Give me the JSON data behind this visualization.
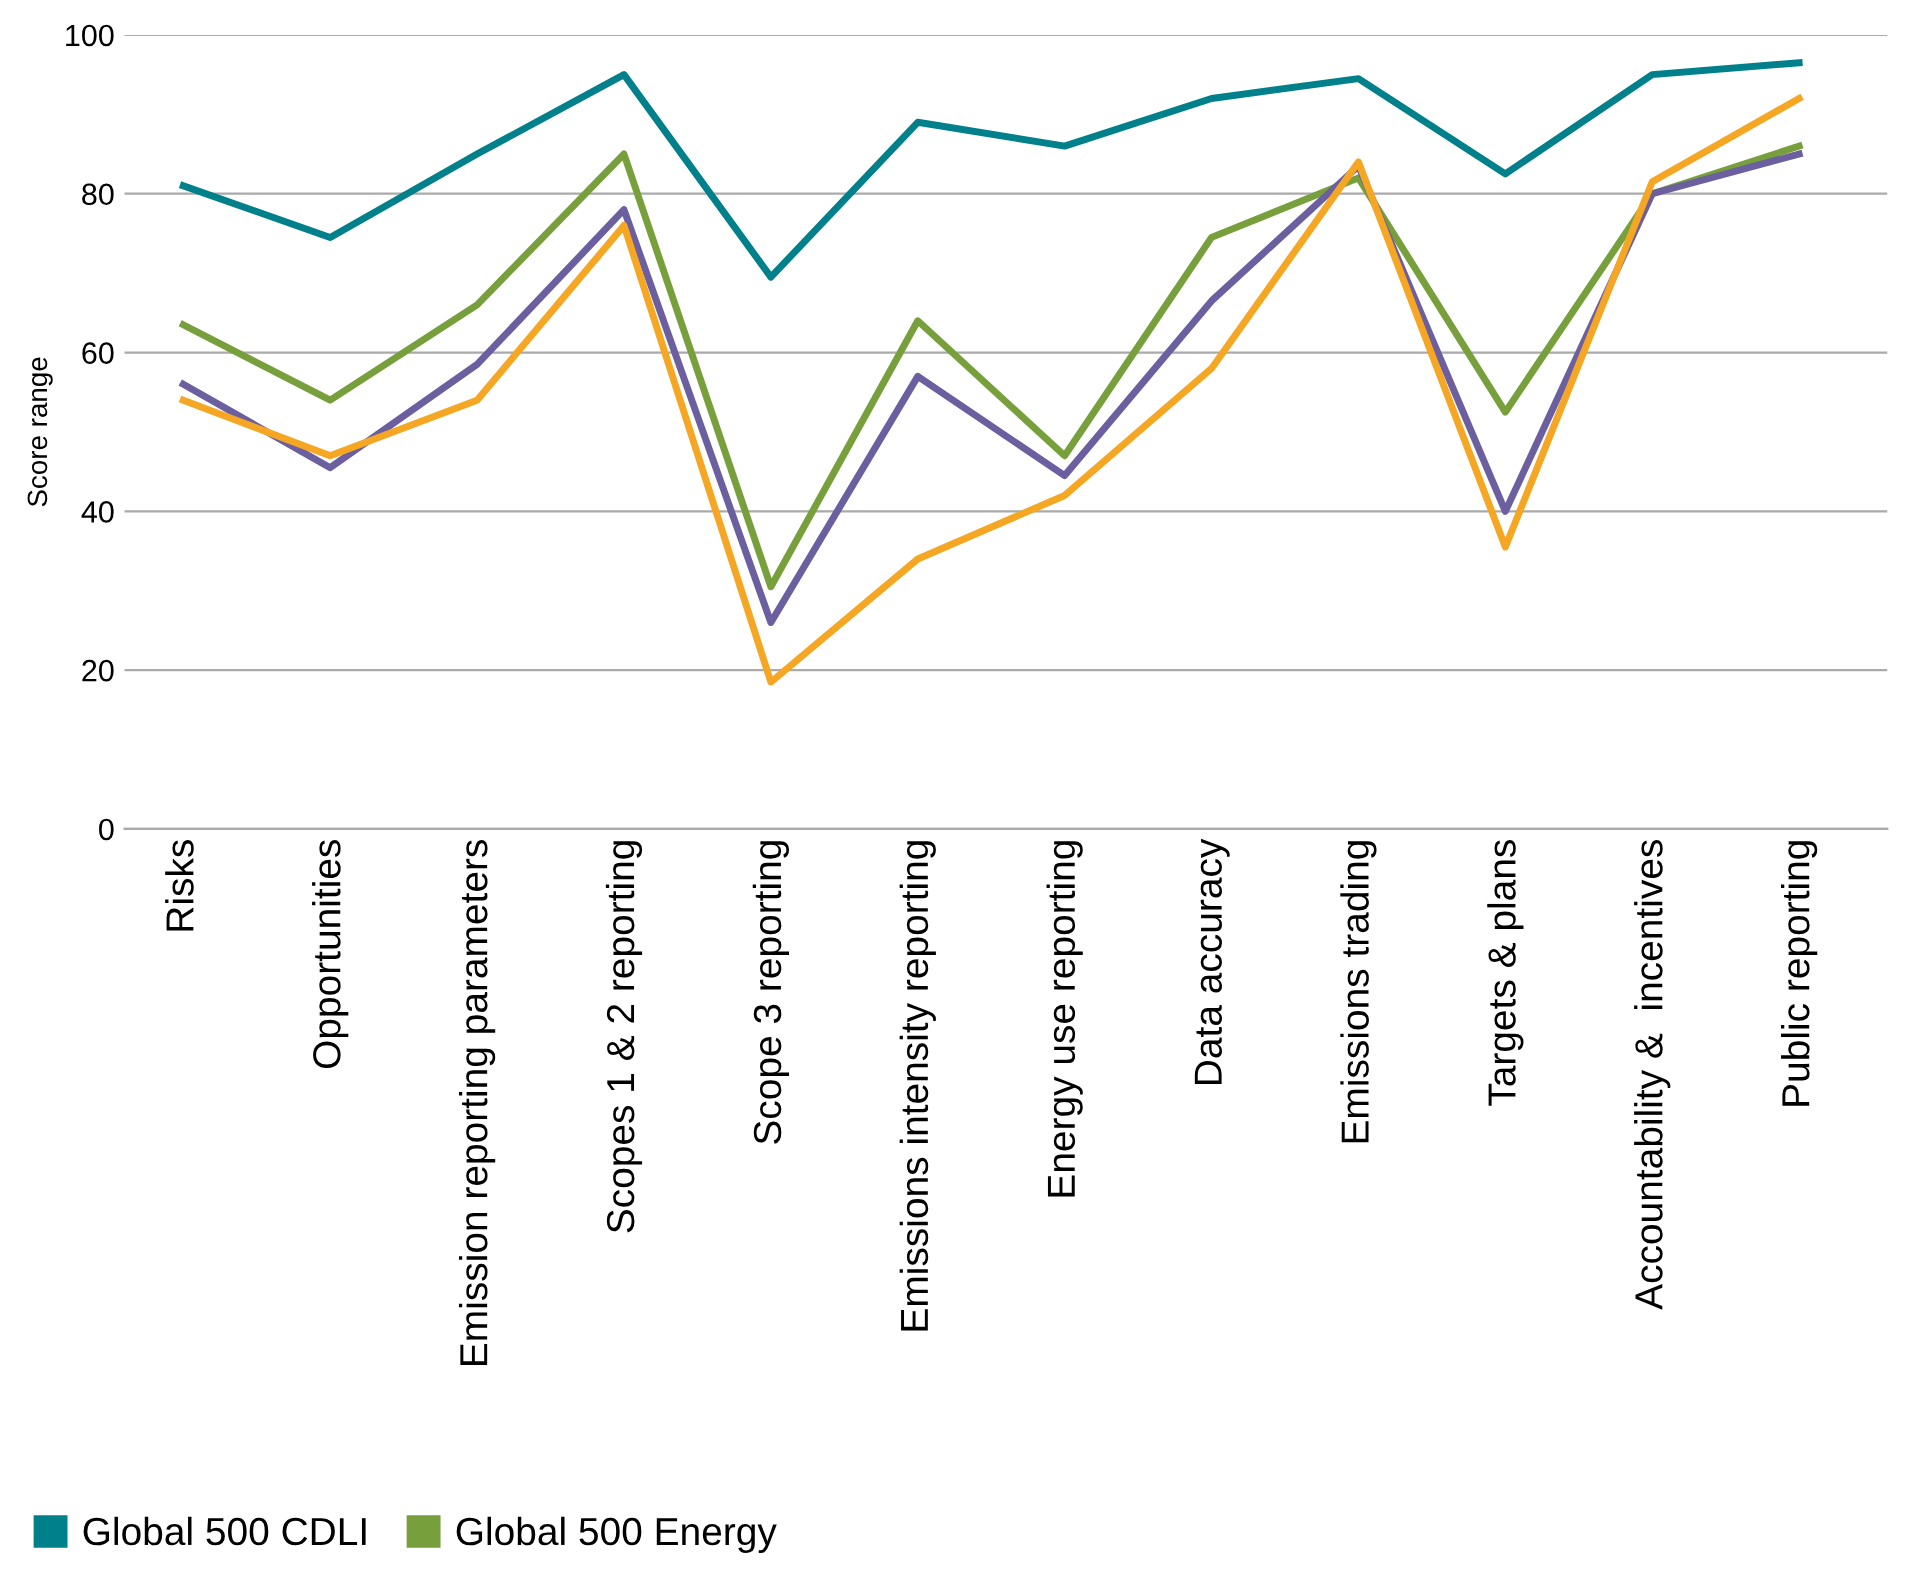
{
  "chart_data": {
    "type": "line",
    "ylabel": "Score range",
    "categories": [
      "Risks",
      "Opportunities",
      "Emission reporting parameters",
      "Scopes 1 & 2 reporting",
      "Scope 3 reporting",
      "Emissions intensity reporting",
      "Energy use reporting",
      "Data accuracy",
      "Emissions trading",
      "Targets & plans",
      "Accountability &  incentives",
      "Public reporting"
    ],
    "series": [
      {
        "name": "Global 500 CDLI",
        "color": "#00808a",
        "values": [
          81,
          74.5,
          85,
          95,
          69.5,
          89,
          86,
          92,
          94.5,
          82.5,
          95,
          96.5
        ]
      },
      {
        "name": "Global 500 Energy",
        "color": "#77a03c",
        "values": [
          63.5,
          54,
          66,
          85,
          30.5,
          64,
          47,
          74.5,
          82,
          52.5,
          80,
          86
        ]
      },
      {
        "color": "#6b5fa0",
        "values": [
          56,
          45.5,
          58.5,
          78,
          26,
          57,
          44.5,
          66.5,
          83.5,
          40,
          80,
          85
        ]
      },
      {
        "color": "#f5a623",
        "values": [
          54,
          47,
          54,
          76,
          18.5,
          34,
          42,
          58,
          84,
          35.5,
          81.5,
          92
        ]
      }
    ],
    "ylim": [
      0,
      100
    ],
    "yticks": [
      0,
      20,
      40,
      60,
      80,
      100
    ],
    "grid": "y",
    "legend": "bottom",
    "marker": "none",
    "line_style": "solid"
  }
}
